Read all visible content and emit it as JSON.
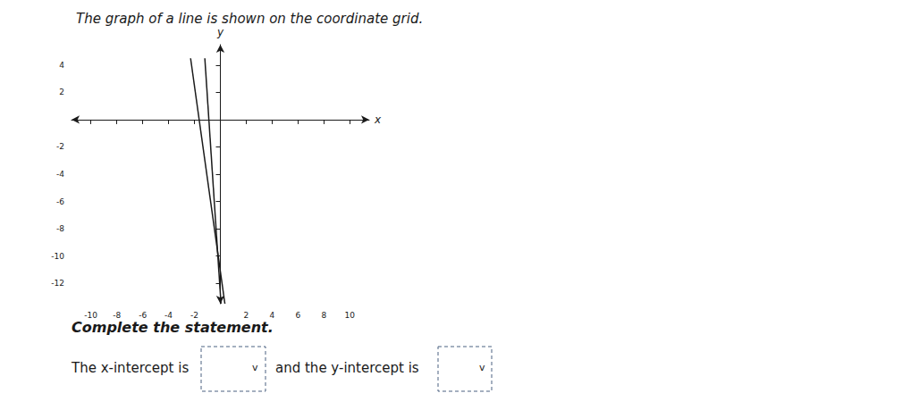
{
  "chart_data": {
    "type": "line",
    "title": "The graph of a line is shown on the coordinate grid.",
    "subtitle": "Complete the statement.",
    "xlabel": "x",
    "ylabel": "y",
    "series": [
      {
        "x": [
          -2.3,
          0.35
        ],
        "values": [
          4.5,
          -13.5
        ],
        "color": "#1a1a1a"
      },
      {
        "x": [
          -1.2,
          0.05
        ],
        "values": [
          4.5,
          -13.5
        ],
        "color": "#1a1a1a"
      }
    ],
    "xlim": [
      -11.5,
      11.5
    ],
    "ylim": [
      -13.5,
      5.5
    ],
    "xticks": [
      -10,
      -8,
      -6,
      -4,
      -2,
      2,
      4,
      6,
      8,
      10
    ],
    "yticks": [
      -12,
      -10,
      -8,
      -6,
      -4,
      -2,
      2,
      4
    ],
    "grid": false,
    "annotations": [
      "The x-intercept is",
      "v",
      "and the y-intercept is",
      "v"
    ]
  }
}
